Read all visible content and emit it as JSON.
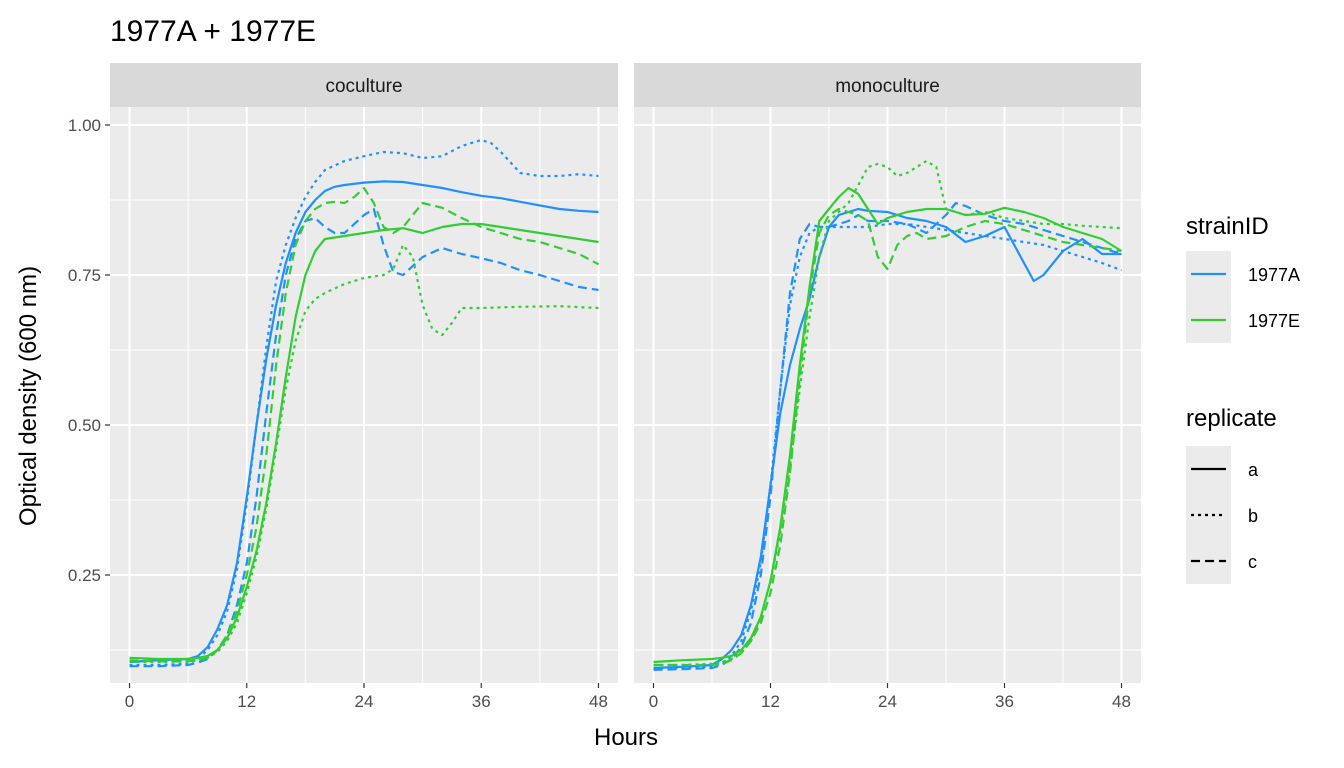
{
  "chart_data": {
    "type": "line",
    "title": "1977A + 1977E",
    "xlabel": "Hours",
    "ylabel": "Optical density (600 nm)",
    "xlim": [
      -2,
      50
    ],
    "ylim": [
      0.07,
      1.03
    ],
    "x_ticks": [
      0,
      12,
      24,
      36,
      48
    ],
    "y_ticks": [
      0.25,
      0.5,
      0.75,
      1.0
    ],
    "x_tick_labels": [
      "0",
      "12",
      "24",
      "36",
      "48"
    ],
    "y_tick_labels": [
      "0.25",
      "0.50",
      "0.75",
      "1.00"
    ],
    "grid": true,
    "facets": [
      "coculture",
      "monoculture"
    ],
    "legend_position": "right",
    "legends": {
      "color": {
        "title": "strainID",
        "entries": [
          {
            "label": "1977A",
            "color": "#1E90FF"
          },
          {
            "label": "1977E",
            "color": "#32CD32"
          }
        ]
      },
      "linetype": {
        "title": "replicate",
        "entries": [
          {
            "label": "a",
            "dash": "solid"
          },
          {
            "label": "b",
            "dash": "dotted"
          },
          {
            "label": "c",
            "dash": "dashed"
          }
        ]
      }
    },
    "series": [
      {
        "facet": "coculture",
        "strain": "1977A",
        "replicate": "a",
        "x": [
          0,
          3,
          6,
          7,
          8,
          9,
          10,
          11,
          12,
          13,
          14,
          15,
          16,
          17,
          18,
          19,
          20,
          21,
          22,
          24,
          26,
          28,
          30,
          32,
          34,
          36,
          38,
          40,
          42,
          44,
          46,
          48
        ],
        "y": [
          0.105,
          0.108,
          0.11,
          0.115,
          0.13,
          0.16,
          0.2,
          0.27,
          0.38,
          0.5,
          0.61,
          0.7,
          0.77,
          0.82,
          0.855,
          0.875,
          0.89,
          0.897,
          0.9,
          0.904,
          0.906,
          0.905,
          0.9,
          0.895,
          0.888,
          0.882,
          0.878,
          0.872,
          0.866,
          0.86,
          0.857,
          0.855
        ]
      },
      {
        "facet": "coculture",
        "strain": "1977A",
        "replicate": "b",
        "x": [
          0,
          3,
          6,
          7,
          8,
          9,
          10,
          11,
          12,
          13,
          14,
          15,
          16,
          17,
          18,
          19,
          20,
          22,
          24,
          26,
          28,
          30,
          32,
          34,
          36,
          37,
          38,
          40,
          42,
          44,
          46,
          48
        ],
        "y": [
          0.1,
          0.1,
          0.102,
          0.11,
          0.125,
          0.15,
          0.19,
          0.26,
          0.37,
          0.5,
          0.63,
          0.74,
          0.8,
          0.845,
          0.88,
          0.905,
          0.925,
          0.94,
          0.948,
          0.955,
          0.953,
          0.945,
          0.948,
          0.965,
          0.975,
          0.97,
          0.955,
          0.92,
          0.915,
          0.915,
          0.918,
          0.915
        ]
      },
      {
        "facet": "coculture",
        "strain": "1977A",
        "replicate": "c",
        "x": [
          0,
          3,
          6,
          7,
          8,
          9,
          10,
          11,
          12,
          13,
          14,
          15,
          16,
          17,
          18,
          19,
          20,
          21,
          22,
          24,
          25,
          26,
          27,
          28,
          30,
          32,
          34,
          36,
          38,
          40,
          42,
          44,
          46,
          48
        ],
        "y": [
          0.098,
          0.098,
          0.1,
          0.104,
          0.11,
          0.125,
          0.15,
          0.2,
          0.27,
          0.38,
          0.52,
          0.65,
          0.75,
          0.81,
          0.84,
          0.845,
          0.83,
          0.82,
          0.82,
          0.85,
          0.86,
          0.8,
          0.755,
          0.75,
          0.78,
          0.795,
          0.785,
          0.778,
          0.77,
          0.758,
          0.75,
          0.74,
          0.73,
          0.725
        ]
      },
      {
        "facet": "coculture",
        "strain": "1977E",
        "replicate": "a",
        "x": [
          0,
          3,
          6,
          7,
          8,
          9,
          10,
          11,
          12,
          13,
          14,
          15,
          16,
          17,
          18,
          19,
          20,
          22,
          24,
          26,
          28,
          30,
          32,
          34,
          36,
          38,
          40,
          42,
          44,
          46,
          48
        ],
        "y": [
          0.112,
          0.11,
          0.11,
          0.112,
          0.115,
          0.125,
          0.145,
          0.18,
          0.23,
          0.29,
          0.37,
          0.47,
          0.58,
          0.68,
          0.75,
          0.79,
          0.81,
          0.815,
          0.82,
          0.825,
          0.828,
          0.82,
          0.83,
          0.835,
          0.835,
          0.83,
          0.825,
          0.82,
          0.815,
          0.81,
          0.805
        ]
      },
      {
        "facet": "coculture",
        "strain": "1977E",
        "replicate": "b",
        "x": [
          0,
          3,
          6,
          7,
          8,
          9,
          10,
          11,
          12,
          13,
          14,
          15,
          16,
          17,
          18,
          19,
          20,
          22,
          24,
          26,
          27,
          28,
          29,
          30,
          31,
          32,
          33,
          34,
          36,
          40,
          44,
          48
        ],
        "y": [
          0.105,
          0.105,
          0.106,
          0.108,
          0.112,
          0.122,
          0.14,
          0.17,
          0.22,
          0.28,
          0.36,
          0.46,
          0.56,
          0.64,
          0.69,
          0.71,
          0.72,
          0.735,
          0.745,
          0.75,
          0.76,
          0.8,
          0.78,
          0.7,
          0.66,
          0.65,
          0.67,
          0.695,
          0.695,
          0.697,
          0.698,
          0.695
        ]
      },
      {
        "facet": "coculture",
        "strain": "1977E",
        "replicate": "c",
        "x": [
          0,
          3,
          6,
          7,
          8,
          9,
          10,
          11,
          12,
          13,
          14,
          15,
          16,
          17,
          18,
          19,
          20,
          21,
          22,
          23,
          24,
          25,
          26,
          27,
          28,
          29,
          30,
          32,
          34,
          36,
          38,
          40,
          42,
          44,
          46,
          48
        ],
        "y": [
          0.108,
          0.106,
          0.106,
          0.108,
          0.112,
          0.125,
          0.15,
          0.19,
          0.25,
          0.33,
          0.45,
          0.6,
          0.72,
          0.8,
          0.84,
          0.86,
          0.87,
          0.872,
          0.87,
          0.88,
          0.895,
          0.87,
          0.83,
          0.82,
          0.83,
          0.85,
          0.87,
          0.862,
          0.845,
          0.83,
          0.82,
          0.81,
          0.805,
          0.795,
          0.785,
          0.768
        ]
      },
      {
        "facet": "monoculture",
        "strain": "1977A",
        "replicate": "a",
        "x": [
          0,
          3,
          6,
          7,
          8,
          9,
          10,
          11,
          12,
          13,
          14,
          15,
          16,
          17,
          18,
          19,
          20,
          21,
          22,
          24,
          26,
          28,
          30,
          32,
          34,
          36,
          38,
          39,
          40,
          42,
          44,
          46,
          48
        ],
        "y": [
          0.095,
          0.097,
          0.1,
          0.11,
          0.125,
          0.15,
          0.2,
          0.28,
          0.4,
          0.52,
          0.6,
          0.66,
          0.71,
          0.78,
          0.83,
          0.85,
          0.855,
          0.86,
          0.857,
          0.855,
          0.845,
          0.84,
          0.83,
          0.805,
          0.815,
          0.83,
          0.77,
          0.74,
          0.75,
          0.79,
          0.81,
          0.785,
          0.785
        ]
      },
      {
        "facet": "monoculture",
        "strain": "1977A",
        "replicate": "b",
        "x": [
          0,
          3,
          6,
          7,
          8,
          9,
          10,
          11,
          12,
          13,
          14,
          15,
          16,
          17,
          18,
          19,
          20,
          22,
          24,
          26,
          28,
          30,
          32,
          34,
          36,
          38,
          40,
          42,
          44,
          46,
          48
        ],
        "y": [
          0.095,
          0.095,
          0.097,
          0.103,
          0.115,
          0.14,
          0.19,
          0.27,
          0.4,
          0.56,
          0.7,
          0.78,
          0.82,
          0.83,
          0.83,
          0.83,
          0.83,
          0.83,
          0.835,
          0.835,
          0.83,
          0.825,
          0.82,
          0.815,
          0.81,
          0.805,
          0.8,
          0.79,
          0.78,
          0.77,
          0.758
        ]
      },
      {
        "facet": "monoculture",
        "strain": "1977A",
        "replicate": "c",
        "x": [
          0,
          3,
          6,
          7,
          8,
          9,
          10,
          11,
          12,
          13,
          14,
          15,
          16,
          17,
          18,
          19,
          20,
          21,
          22,
          24,
          26,
          28,
          30,
          31,
          32,
          34,
          36,
          38,
          40,
          42,
          44,
          46,
          48
        ],
        "y": [
          0.092,
          0.093,
          0.095,
          0.1,
          0.11,
          0.13,
          0.17,
          0.25,
          0.38,
          0.56,
          0.72,
          0.81,
          0.835,
          0.83,
          0.83,
          0.835,
          0.84,
          0.85,
          0.84,
          0.84,
          0.835,
          0.82,
          0.85,
          0.87,
          0.865,
          0.85,
          0.84,
          0.835,
          0.825,
          0.815,
          0.805,
          0.795,
          0.785
        ]
      },
      {
        "facet": "monoculture",
        "strain": "1977E",
        "replicate": "a",
        "x": [
          0,
          3,
          6,
          7,
          8,
          9,
          10,
          11,
          12,
          13,
          14,
          15,
          16,
          17,
          18,
          19,
          20,
          21,
          22,
          23,
          24,
          26,
          28,
          30,
          32,
          34,
          36,
          38,
          40,
          42,
          44,
          46,
          48
        ],
        "y": [
          0.105,
          0.108,
          0.11,
          0.112,
          0.115,
          0.125,
          0.145,
          0.18,
          0.24,
          0.33,
          0.45,
          0.6,
          0.73,
          0.84,
          0.86,
          0.88,
          0.895,
          0.885,
          0.86,
          0.835,
          0.845,
          0.855,
          0.86,
          0.86,
          0.85,
          0.852,
          0.862,
          0.855,
          0.845,
          0.83,
          0.82,
          0.81,
          0.79
        ]
      },
      {
        "facet": "monoculture",
        "strain": "1977E",
        "replicate": "b",
        "x": [
          0,
          3,
          6,
          7,
          8,
          9,
          10,
          11,
          12,
          13,
          14,
          15,
          16,
          17,
          18,
          19,
          20,
          21,
          22,
          23,
          24,
          25,
          26,
          27,
          28,
          29,
          30,
          32,
          34,
          36,
          38,
          40,
          42,
          44,
          46,
          48
        ],
        "y": [
          0.1,
          0.1,
          0.102,
          0.105,
          0.11,
          0.12,
          0.14,
          0.18,
          0.24,
          0.32,
          0.43,
          0.56,
          0.68,
          0.78,
          0.84,
          0.855,
          0.87,
          0.9,
          0.93,
          0.935,
          0.93,
          0.915,
          0.92,
          0.93,
          0.94,
          0.93,
          0.86,
          0.85,
          0.855,
          0.845,
          0.84,
          0.835,
          0.835,
          0.832,
          0.83,
          0.828
        ]
      },
      {
        "facet": "monoculture",
        "strain": "1977E",
        "replicate": "c",
        "x": [
          0,
          3,
          6,
          7,
          8,
          9,
          10,
          11,
          12,
          13,
          14,
          15,
          16,
          17,
          18,
          19,
          20,
          21,
          22,
          23,
          24,
          25,
          26,
          27,
          28,
          30,
          32,
          34,
          36,
          38,
          40,
          42,
          44,
          46,
          48
        ],
        "y": [
          0.1,
          0.1,
          0.1,
          0.102,
          0.108,
          0.12,
          0.14,
          0.17,
          0.22,
          0.3,
          0.42,
          0.58,
          0.72,
          0.82,
          0.85,
          0.86,
          0.855,
          0.85,
          0.84,
          0.78,
          0.76,
          0.8,
          0.815,
          0.82,
          0.81,
          0.815,
          0.83,
          0.84,
          0.835,
          0.825,
          0.815,
          0.805,
          0.8,
          0.795,
          0.79
        ]
      }
    ]
  }
}
